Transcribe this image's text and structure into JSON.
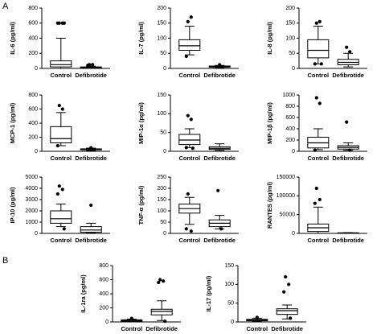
{
  "panel_labels": [
    "A",
    "B"
  ],
  "chart_data": [
    {
      "type": "box",
      "ylabel": "IL-6 (pg/ml)",
      "categories": [
        "Control",
        "Defibrotide"
      ],
      "color": "#000000",
      "ylim": [
        0,
        800
      ],
      "yticks": [
        0,
        200,
        400,
        600,
        800
      ],
      "boxes": [
        {
          "whislo": 0,
          "q1": 20,
          "med": 50,
          "q3": 100,
          "whishi": 400,
          "fliers": [
            600,
            600,
            600,
            600
          ]
        },
        {
          "whislo": 0,
          "q1": 5,
          "med": 10,
          "q3": 20,
          "whishi": 30,
          "fliers": [
            50,
            50,
            40
          ]
        }
      ]
    },
    {
      "type": "box",
      "ylabel": "IL-7 (pg/ml)",
      "categories": [
        "Control",
        "Defibrotide"
      ],
      "color": "#000000",
      "ylim": [
        0,
        200
      ],
      "yticks": [
        0,
        50,
        100,
        150,
        200
      ],
      "boxes": [
        {
          "whislo": 45,
          "q1": 60,
          "med": 75,
          "q3": 95,
          "whishi": 140,
          "fliers": [
            155,
            170,
            40
          ]
        },
        {
          "whislo": 2,
          "q1": 4,
          "med": 6,
          "q3": 8,
          "whishi": 10,
          "fliers": [
            12
          ]
        }
      ]
    },
    {
      "type": "box",
      "ylabel": "IL-8 (pg/ml)",
      "categories": [
        "Control",
        "Defibrotide"
      ],
      "color": "#000000",
      "ylim": [
        0,
        200
      ],
      "yticks": [
        0,
        50,
        100,
        150,
        200
      ],
      "boxes": [
        {
          "whislo": 15,
          "q1": 35,
          "med": 60,
          "q3": 95,
          "whishi": 140,
          "fliers": [
            150,
            155,
            15,
            15
          ]
        },
        {
          "whislo": 5,
          "q1": 12,
          "med": 20,
          "q3": 30,
          "whishi": 50,
          "fliers": [
            70,
            55
          ]
        }
      ]
    },
    {
      "type": "box",
      "ylabel": "MCP-1 (pg/ml)",
      "categories": [
        "Control",
        "Defibrotide"
      ],
      "color": "#000000",
      "ylim": [
        0,
        800
      ],
      "yticks": [
        0,
        200,
        400,
        600,
        800
      ],
      "boxes": [
        {
          "whislo": 80,
          "q1": 120,
          "med": 180,
          "q3": 350,
          "whishi": 550,
          "fliers": [
            650,
            600,
            80
          ]
        },
        {
          "whislo": 10,
          "q1": 20,
          "med": 25,
          "q3": 35,
          "whishi": 45,
          "fliers": [
            50
          ]
        }
      ]
    },
    {
      "type": "box",
      "ylabel": "MIP-1α (pg/ml)",
      "categories": [
        "Control",
        "Defibrotide"
      ],
      "color": "#000000",
      "ylim": [
        0,
        150
      ],
      "yticks": [
        0,
        50,
        100,
        150
      ],
      "boxes": [
        {
          "whislo": 10,
          "q1": 18,
          "med": 30,
          "q3": 45,
          "whishi": 60,
          "fliers": [
            95,
            85,
            10,
            8
          ]
        },
        {
          "whislo": 2,
          "q1": 5,
          "med": 8,
          "q3": 12,
          "whishi": 20,
          "fliers": []
        }
      ]
    },
    {
      "type": "box",
      "ylabel": "MIP-1β (pg/ml)",
      "categories": [
        "Control",
        "Defibrotide"
      ],
      "color": "#000000",
      "ylim": [
        0,
        1000
      ],
      "yticks": [
        0,
        200,
        400,
        600,
        800,
        1000
      ],
      "boxes": [
        {
          "whislo": 30,
          "q1": 60,
          "med": 150,
          "q3": 250,
          "whishi": 400,
          "fliers": [
            950,
            850,
            20
          ]
        },
        {
          "whislo": 20,
          "q1": 40,
          "med": 70,
          "q3": 100,
          "whishi": 150,
          "fliers": [
            520,
            20
          ]
        }
      ]
    },
    {
      "type": "box",
      "ylabel": "IP-10 (pg/ml)",
      "categories": [
        "Control",
        "Defibrotide"
      ],
      "color": "#000000",
      "ylim": [
        0,
        5000
      ],
      "yticks": [
        0,
        1000,
        2000,
        3000,
        4000,
        5000
      ],
      "boxes": [
        {
          "whislo": 600,
          "q1": 900,
          "med": 1300,
          "q3": 2000,
          "whishi": 2600,
          "fliers": [
            4200,
            3900,
            3500,
            400
          ]
        },
        {
          "whislo": 50,
          "q1": 100,
          "med": 300,
          "q3": 600,
          "whishi": 900,
          "fliers": [
            2500
          ]
        }
      ]
    },
    {
      "type": "box",
      "ylabel": "TNF-α (pg/ml)",
      "categories": [
        "Control",
        "Defibrotide"
      ],
      "color": "#000000",
      "ylim": [
        0,
        250
      ],
      "yticks": [
        0,
        50,
        100,
        150,
        200,
        250
      ],
      "boxes": [
        {
          "whislo": 40,
          "q1": 90,
          "med": 110,
          "q3": 130,
          "whishi": 160,
          "fliers": [
            175,
            10,
            20
          ]
        },
        {
          "whislo": 20,
          "q1": 30,
          "med": 45,
          "q3": 60,
          "whishi": 80,
          "fliers": [
            190,
            20
          ]
        }
      ]
    },
    {
      "type": "box",
      "ylabel": "RANTES (pg/ml)",
      "categories": [
        "Control",
        "Defibrotide"
      ],
      "color": "#000000",
      "ylim": [
        0,
        150000
      ],
      "yticks": [
        0,
        50000,
        100000,
        150000
      ],
      "boxes": [
        {
          "whislo": 0,
          "q1": 5000,
          "med": 15000,
          "q3": 25000,
          "whishi": 70000,
          "fliers": [
            120000,
            90000,
            80000
          ]
        },
        {
          "whislo": 0,
          "q1": 500,
          "med": 1000,
          "q3": 1500,
          "whishi": 2000,
          "fliers": []
        }
      ]
    },
    {
      "type": "box",
      "ylabel": "IL-1ra (pg/ml)",
      "categories": [
        "Control",
        "Defibrotide"
      ],
      "color": "#000000",
      "ylim": [
        0,
        800
      ],
      "yticks": [
        0,
        200,
        400,
        600,
        800
      ],
      "boxes": [
        {
          "whislo": 5,
          "q1": 10,
          "med": 20,
          "q3": 30,
          "whishi": 40,
          "fliers": [
            50
          ]
        },
        {
          "whislo": 20,
          "q1": 100,
          "med": 150,
          "q3": 180,
          "whishi": 300,
          "fliers": [
            600,
            580,
            560,
            10
          ]
        }
      ]
    },
    {
      "type": "box",
      "ylabel": "IL-17 (pg/ml)",
      "categories": [
        "Control",
        "Defibrotide"
      ],
      "color": "#000000",
      "ylim": [
        0,
        150
      ],
      "yticks": [
        0,
        50,
        100,
        150
      ],
      "boxes": [
        {
          "whislo": 1,
          "q1": 3,
          "med": 5,
          "q3": 7,
          "whishi": 10,
          "fliers": [
            12
          ]
        },
        {
          "whislo": 8,
          "q1": 20,
          "med": 30,
          "q3": 35,
          "whishi": 45,
          "fliers": [
            120,
            100,
            80,
            10
          ]
        }
      ]
    }
  ]
}
